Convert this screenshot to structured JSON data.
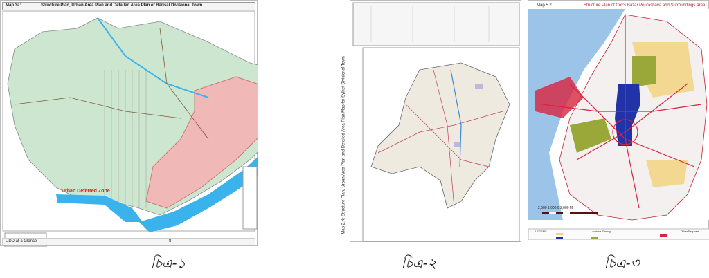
{
  "figures": [
    {
      "caption": "চিত্র-১",
      "map_label": "Map 3a:",
      "title": "Structure Plan, Urban Area Plan and Detailed Area Plan of Barisal Divisional Town",
      "zone_label": "Urban Deferred Zone",
      "footer": "UDD at a Glance",
      "footer_page": "8",
      "colors": {
        "river": "#3ab3ec",
        "land": "#cde6cf",
        "urban": "#f1b8b8"
      }
    },
    {
      "caption": "চিত্র-২",
      "title": "Map 2.X: Structure Plan, Urban Area Plan and Detailed Area Plan Map for Sylhet Divisional Town",
      "colors": {
        "land": "#eeeae0",
        "roads": "#c0405a"
      }
    },
    {
      "caption": "চিত্র-৩",
      "map_label": "Map 5.2",
      "title": "Structure Plan of Cox's Bazar Pourashava and Surroundings Area",
      "scale_label": "2,000   1,000   0          2,000 M",
      "legend_title": "LEGEND",
      "legend_section": "Landuse Zoning",
      "legend_other": "Other Proposal",
      "colors": {
        "sea": "#9cc4e8",
        "roads": "#d8243c",
        "zone_blue": "#2233aa",
        "zone_olive": "#9aa83a",
        "zone_yellow": "#f3d27a"
      }
    }
  ]
}
